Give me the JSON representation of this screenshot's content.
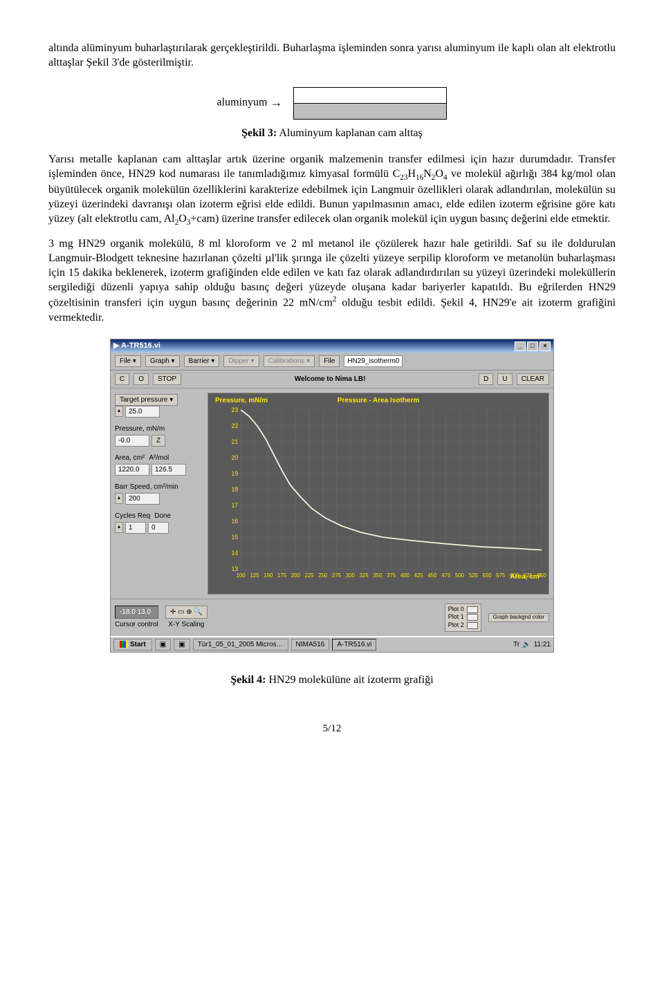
{
  "paragraphs": {
    "p1": "altında alüminyum buharlaştırılarak gerçekleştirildi.  Buharlaşma işleminden sonra yarısı aluminyum ile kaplı olan alt elektrotlu alttaşlar Şekil 3'de gösterilmiştir."
  },
  "sekil3": {
    "label": "aluminyum",
    "caption_bold": "Şekil 3:",
    "caption_rest": " Aluminyum kaplanan cam alttaş"
  },
  "paragraphs2": {
    "p2a": "Yarısı metalle kaplanan cam alttaşlar artık üzerine organik malzemenin transfer edilmesi için hazır durumdadır.  Transfer işleminden önce, HN29 kod numarası ile tanımladığımız kimyasal formülü C",
    "p2b": " ve molekül ağırlığı 384 kg/mol olan büyütülecek organik molekülün özelliklerini karakterize edebilmek için Langmuir özellikleri olarak adlandırılan, molekülün su yüzeyi üzerindeki davranışı olan izoterm eğrisi elde edildi. Bunun yapılmasının amacı, elde edilen izoterm eğrisine göre katı yüzey (alt elektrotlu cam, Al",
    "p2c": "+cam) üzerine transfer edilecek olan organik molekül için uygun basınç değerini elde etmektir.",
    "p3a": "3 mg HN29 organik molekülü, 8 ml kloroform ve 2 ml metanol ile çözülerek hazır hale getirildi. Saf su ile doldurulan Langmuir-Blodgett teknesine hazırlanan çözelti µl'lik şırınga ile çözelti yüzeye serpilip kloroform ve metanolün buharlaşması için 15 dakika beklenerek, izoterm grafiğinden elde edilen ve katı faz olarak adlandırdırılan su yüzeyi üzerindeki moleküllerin sergilediği düzenli yapıya sahip olduğu basınç değeri yüzeyde oluşana kadar bariyerler kapatıldı. Bu eğrilerden HN29 çözeltisinin transferi için uygun basınç değerinin 22 mN/cm",
    "p3b": " olduğu tesbit edildi.  Şekil 4, HN29'e ait izoterm grafiğini vermektedir."
  },
  "sekil4": {
    "caption_bold": "Şekil 4:",
    "caption_rest": " HN29 molekülüne ait izoterm grafiği"
  },
  "chart": {
    "title": "Pressure - Area Isotherm",
    "y_axis_label": "Pressure, mN/m",
    "x_axis_label": "Area, cm²",
    "ylim": [
      13,
      23
    ],
    "yticks": [
      13,
      14,
      15,
      16,
      17,
      18,
      19,
      20,
      21,
      22,
      23
    ],
    "xlim": [
      100,
      650
    ],
    "xticks": [
      100,
      125,
      150,
      175,
      200,
      225,
      250,
      275,
      300,
      325,
      350,
      375,
      400,
      425,
      450,
      475,
      500,
      525,
      550,
      575,
      600,
      625,
      650
    ],
    "curve": [
      [
        100,
        23.0
      ],
      [
        115,
        22.6
      ],
      [
        130,
        22.0
      ],
      [
        145,
        21.2
      ],
      [
        160,
        20.2
      ],
      [
        175,
        19.2
      ],
      [
        190,
        18.3
      ],
      [
        210,
        17.5
      ],
      [
        230,
        16.8
      ],
      [
        255,
        16.2
      ],
      [
        285,
        15.7
      ],
      [
        320,
        15.3
      ],
      [
        360,
        15.0
      ],
      [
        410,
        14.8
      ],
      [
        470,
        14.6
      ],
      [
        540,
        14.4
      ],
      [
        600,
        14.3
      ],
      [
        650,
        14.2
      ]
    ],
    "background_color": "#5a5a5a",
    "grid_color": "#777777",
    "axis_text_color": "#ffe600",
    "line_color": "#f5f5dc",
    "line_width": 1.8
  },
  "app": {
    "window_title": "A-TR516.vi",
    "menus": [
      "File ▾",
      "Graph ▾",
      "Barrier ▾",
      "Dipper ▾",
      "Calibrations ▾",
      "File"
    ],
    "file_name": "HN29_isotherm0",
    "toolbar": {
      "c": "C",
      "o": "O",
      "stop": "STOP",
      "welcome": "Welcome to Nima LB!",
      "d": "D",
      "u": "U",
      "clear": "CLEAR"
    },
    "sidebar": {
      "target_pressure": {
        "label": "Target pressure ▾",
        "value": "25.0"
      },
      "pressure": {
        "label": "Pressure, mN/m",
        "value": "-0.0",
        "btn": "Z"
      },
      "area": {
        "label1": "Area, cm²",
        "label2": "A²/mol",
        "value1": "1220.0",
        "value2": "126.5"
      },
      "barr_speed": {
        "label": "Barr Speed, cm²/min",
        "value": "200"
      },
      "cycles": {
        "label1": "Cycles Req",
        "label2": "Done",
        "value1": "1",
        "value2": "0"
      }
    },
    "bottom": {
      "cursor_pos": "-18.0   13.0",
      "cursor_label": "Cursor control",
      "xy_label": "X-Y Scaling",
      "plot0": "Plot 0",
      "plot1": "Plot 1",
      "plot2": "Plot 2",
      "graph_btn": "Graph backgnd color"
    },
    "taskbar": {
      "start": "Start",
      "items": [
        "",
        "",
        "",
        "Tür1_05_01_2005  Micros…",
        "NIMA516",
        "A-TR516.vi"
      ],
      "time": "11:21"
    }
  },
  "page_number": "5/12"
}
